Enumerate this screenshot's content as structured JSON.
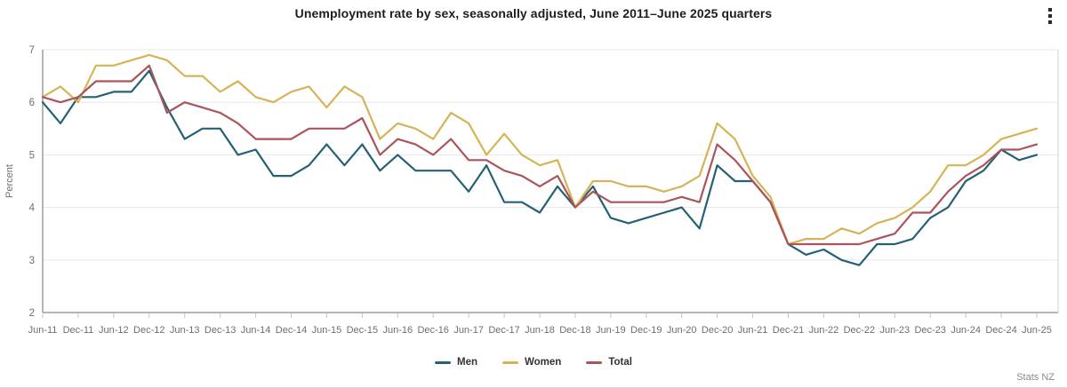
{
  "header": {
    "title": "Unemployment rate by sex, seasonally adjusted, June 2011–June 2025 quarters",
    "menu_icon": "kebab-vertical-menu"
  },
  "footer": {
    "source": "Stats NZ"
  },
  "chart_data": {
    "type": "line",
    "title": "Unemployment rate by sex, seasonally adjusted, June 2011–June 2025 quarters",
    "xlabel": "",
    "ylabel": "Percent",
    "ylim": [
      2,
      7
    ],
    "yticks": [
      2,
      3,
      4,
      5,
      6,
      7
    ],
    "grid": "horizontal",
    "legend_position": "bottom",
    "x_tick_labels": [
      "Jun-11",
      "Dec-11",
      "Jun-12",
      "Dec-12",
      "Jun-13",
      "Dec-13",
      "Jun-14",
      "Dec-14",
      "Jun-15",
      "Dec-15",
      "Jun-16",
      "Dec-16",
      "Jun-17",
      "Dec-17",
      "Jun-18",
      "Dec-18",
      "Jun-19",
      "Dec-19",
      "Jun-20",
      "Dec-20",
      "Jun-21",
      "Dec-21",
      "Jun-22",
      "Dec-22",
      "Jun-23",
      "Dec-23",
      "Jun-24",
      "Dec-24",
      "Jun-25"
    ],
    "categories": [
      "Jun-11",
      "Sep-11",
      "Dec-11",
      "Mar-12",
      "Jun-12",
      "Sep-12",
      "Dec-12",
      "Mar-13",
      "Jun-13",
      "Sep-13",
      "Dec-13",
      "Mar-14",
      "Jun-14",
      "Sep-14",
      "Dec-14",
      "Mar-15",
      "Jun-15",
      "Sep-15",
      "Dec-15",
      "Mar-16",
      "Jun-16",
      "Sep-16",
      "Dec-16",
      "Mar-17",
      "Jun-17",
      "Sep-17",
      "Dec-17",
      "Mar-18",
      "Jun-18",
      "Sep-18",
      "Dec-18",
      "Mar-19",
      "Jun-19",
      "Sep-19",
      "Dec-19",
      "Mar-20",
      "Jun-20",
      "Sep-20",
      "Dec-20",
      "Mar-21",
      "Jun-21",
      "Sep-21",
      "Dec-21",
      "Mar-22",
      "Jun-22",
      "Sep-22",
      "Dec-22",
      "Mar-23",
      "Jun-23",
      "Sep-23",
      "Dec-23",
      "Mar-24",
      "Jun-24",
      "Sep-24",
      "Dec-24",
      "Mar-25",
      "Jun-25"
    ],
    "series": [
      {
        "name": "Men",
        "color": "#246174",
        "values": [
          6.0,
          5.6,
          6.1,
          6.1,
          6.2,
          6.2,
          6.6,
          5.9,
          5.3,
          5.5,
          5.5,
          5.0,
          5.1,
          4.6,
          4.6,
          4.8,
          5.2,
          4.8,
          5.2,
          4.7,
          5.0,
          4.7,
          4.7,
          4.7,
          4.3,
          4.8,
          4.1,
          4.1,
          3.9,
          4.4,
          4.0,
          4.4,
          3.8,
          3.7,
          3.8,
          3.9,
          4.0,
          3.6,
          4.8,
          4.5,
          4.5,
          4.1,
          3.3,
          3.1,
          3.2,
          3.0,
          2.9,
          3.3,
          3.3,
          3.4,
          3.8,
          4.0,
          4.5,
          4.7,
          5.1,
          4.9,
          5.0
        ]
      },
      {
        "name": "Women",
        "color": "#d6b356",
        "values": [
          6.1,
          6.3,
          6.0,
          6.7,
          6.7,
          6.8,
          6.9,
          6.8,
          6.5,
          6.5,
          6.2,
          6.4,
          6.1,
          6.0,
          6.2,
          6.3,
          5.9,
          6.3,
          6.1,
          5.3,
          5.6,
          5.5,
          5.3,
          5.8,
          5.6,
          5.0,
          5.4,
          5.0,
          4.8,
          4.9,
          4.0,
          4.5,
          4.5,
          4.4,
          4.4,
          4.3,
          4.4,
          4.6,
          5.6,
          5.3,
          4.6,
          4.2,
          3.3,
          3.4,
          3.4,
          3.6,
          3.5,
          3.7,
          3.8,
          4.0,
          4.3,
          4.8,
          4.8,
          5.0,
          5.3,
          5.4,
          5.5
        ]
      },
      {
        "name": "Total",
        "color": "#ab545a",
        "values": [
          6.1,
          6.0,
          6.1,
          6.4,
          6.4,
          6.4,
          6.7,
          5.8,
          6.0,
          5.9,
          5.8,
          5.6,
          5.3,
          5.3,
          5.3,
          5.5,
          5.5,
          5.5,
          5.7,
          5.0,
          5.3,
          5.2,
          5.0,
          5.3,
          4.9,
          4.9,
          4.7,
          4.6,
          4.4,
          4.6,
          4.0,
          4.3,
          4.1,
          4.1,
          4.1,
          4.1,
          4.2,
          4.1,
          5.2,
          4.9,
          4.5,
          4.1,
          3.3,
          3.3,
          3.3,
          3.3,
          3.3,
          3.4,
          3.5,
          3.9,
          3.9,
          4.3,
          4.6,
          4.8,
          5.1,
          5.1,
          5.2
        ]
      }
    ],
    "style": {
      "gridline_color": "#e7e7e7",
      "axis_color": "#9b9b9b",
      "tick_color": "#c4c4c4",
      "tick_label_color": "#6e6e6e",
      "plot_border_right_color": "#d4d4d4"
    }
  }
}
